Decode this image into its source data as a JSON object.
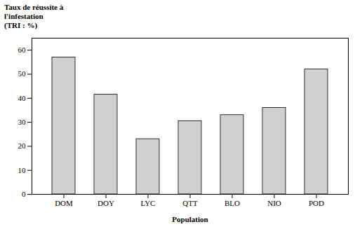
{
  "chart_data": {
    "type": "bar",
    "categories": [
      "DOM",
      "DOY",
      "LYC",
      "QTT",
      "BLO",
      "NIO",
      "POD"
    ],
    "values": [
      57,
      41.5,
      23,
      30.5,
      33,
      36,
      52
    ],
    "color": "#d0d0d0",
    "xlabel": "Population",
    "ylabel": "Taux de réussite à\nl'infestation\n(TRI : %)",
    "ylim": [
      0,
      65
    ],
    "yticks": [
      0,
      10,
      20,
      30,
      40,
      50,
      60
    ],
    "grid": false
  }
}
